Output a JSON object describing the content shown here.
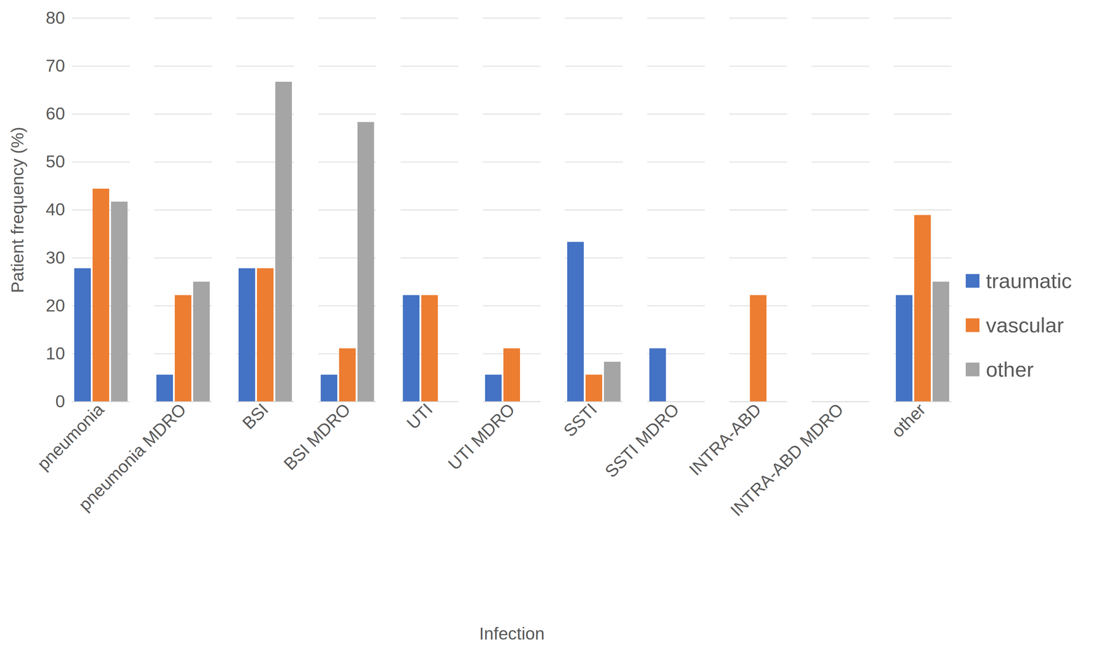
{
  "chart_data": {
    "type": "bar",
    "x_label": "Infection",
    "y_label": "Patient frequency (%)",
    "categories": [
      "pneumonia",
      "pneumonia MDRO",
      "BSI",
      "BSI MDRO",
      "UTI",
      "UTI MDRO",
      "SSTI",
      "SSTI MDRO",
      "INTRA-ABD",
      "INTRA-ABD MDRO",
      "other"
    ],
    "series": [
      {
        "name": "traumatic",
        "color": "#4472c4",
        "values": [
          27.8,
          5.6,
          27.8,
          5.6,
          22.2,
          5.6,
          33.3,
          11.1,
          0,
          0,
          22.2
        ]
      },
      {
        "name": "vascular",
        "color": "#ed7d31",
        "values": [
          44.4,
          22.2,
          27.8,
          11.1,
          22.2,
          11.1,
          5.6,
          0,
          22.2,
          0,
          38.9
        ]
      },
      {
        "name": "other",
        "color": "#a5a5a5",
        "values": [
          41.7,
          25,
          66.7,
          58.3,
          0,
          0,
          8.3,
          0,
          0,
          0,
          25
        ]
      }
    ],
    "ylim": [
      0,
      80
    ],
    "yticks": [
      0,
      10,
      20,
      30,
      40,
      50,
      60,
      70,
      80
    ],
    "grid": true,
    "legend": "right"
  }
}
